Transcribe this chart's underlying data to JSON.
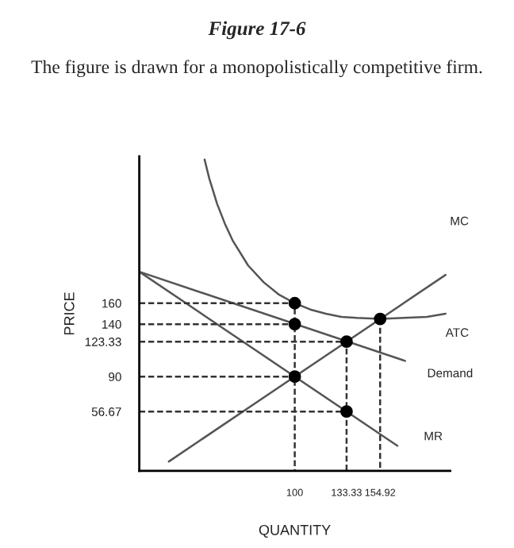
{
  "chart_data": {
    "type": "line",
    "title": "Figure 17-6",
    "subtitle": "The figure is drawn for a monopolistically competitive firm.",
    "xlabel": "QUANTITY",
    "ylabel": "PRICE",
    "xlim": [
      0,
      200
    ],
    "ylim": [
      0,
      300
    ],
    "xticks": [
      100,
      133.33,
      154.92
    ],
    "yticks": [
      56.67,
      90,
      123.33,
      140,
      160
    ],
    "grid": false,
    "legend": false,
    "series": [
      {
        "name": "MC",
        "color": "#555555",
        "line_style": "solid",
        "marker": "none",
        "x": [
          19,
          197
        ],
        "values": [
          9,
          187
        ]
      },
      {
        "name": "ATC",
        "color": "#555555",
        "line_style": "solid",
        "marker": "none",
        "x": [
          42,
          45,
          50,
          55,
          60,
          70,
          80,
          90,
          100,
          110,
          120,
          130,
          140,
          154.92,
          170,
          185,
          197
        ],
        "values": [
          297,
          279,
          255,
          236,
          220,
          196,
          180,
          168,
          160,
          154,
          150,
          147,
          146,
          145,
          146,
          147,
          150
        ]
      },
      {
        "name": "Demand",
        "color": "#555555",
        "line_style": "solid",
        "marker": "none",
        "x": [
          0,
          171
        ],
        "values": [
          190,
          105
        ]
      },
      {
        "name": "MR",
        "color": "#555555",
        "line_style": "solid",
        "marker": "none",
        "x": [
          0,
          166
        ],
        "values": [
          190,
          24
        ]
      },
      {
        "color": "#333333",
        "line_style": "dashed",
        "marker": "none",
        "x": [
          0,
          100,
          100
        ],
        "values": [
          160,
          160,
          0
        ]
      },
      {
        "color": "#333333",
        "line_style": "dashed",
        "marker": "none",
        "x": [
          0,
          100
        ],
        "values": [
          140,
          140
        ]
      },
      {
        "color": "#333333",
        "line_style": "dashed",
        "marker": "none",
        "x": [
          0,
          100
        ],
        "values": [
          90,
          90
        ]
      },
      {
        "color": "#333333",
        "line_style": "dashed",
        "marker": "none",
        "x": [
          0,
          133.33,
          133.33
        ],
        "values": [
          123.33,
          123.33,
          0
        ]
      },
      {
        "color": "#333333",
        "line_style": "dashed",
        "marker": "none",
        "x": [
          0,
          133.33
        ],
        "values": [
          56.67,
          56.67
        ]
      },
      {
        "color": "#333333",
        "line_style": "dashed",
        "marker": "none",
        "x": [
          154.92,
          154.92
        ],
        "values": [
          145,
          0
        ]
      },
      {
        "type": "scatter",
        "color": "#000000",
        "marker": "circle",
        "x": [
          100,
          100,
          100,
          133.33,
          133.33,
          154.92
        ],
        "values": [
          160,
          140,
          90,
          123.33,
          56.67,
          145
        ]
      }
    ]
  }
}
